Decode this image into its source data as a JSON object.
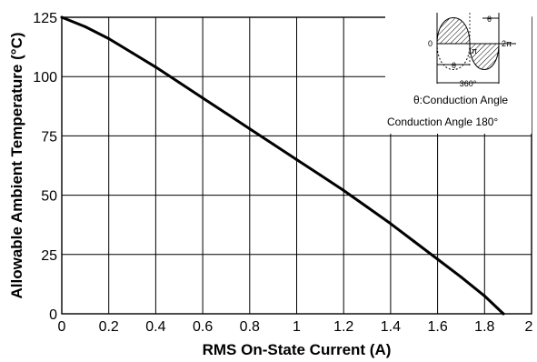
{
  "chart_data": {
    "type": "line",
    "xlabel": "RMS On-State Current (A)",
    "ylabel": "Allowable Ambient Temperature (°C)",
    "xlim": [
      0,
      2
    ],
    "ylim": [
      0,
      125
    ],
    "x_ticks": [
      "0",
      "0.2",
      "0.4",
      "0.6",
      "0.8",
      "1",
      "1.2",
      "1.4",
      "1.6",
      "1.8",
      "2"
    ],
    "y_ticks": [
      "0",
      "25",
      "50",
      "75",
      "100",
      "125"
    ],
    "x_tick_values": [
      0,
      0.2,
      0.4,
      0.6,
      0.8,
      1.0,
      1.2,
      1.4,
      1.6,
      1.8,
      2.0
    ],
    "y_tick_values": [
      0,
      25,
      50,
      75,
      100,
      125
    ],
    "grid": true,
    "series": [
      {
        "x": [
          0,
          0.1,
          0.2,
          0.3,
          0.4,
          0.5,
          0.6,
          0.7,
          0.8,
          0.9,
          1.0,
          1.1,
          1.2,
          1.3,
          1.4,
          1.5,
          1.6,
          1.7,
          1.8,
          1.88
        ],
        "y": [
          125,
          121,
          116,
          110,
          104,
          97.5,
          91,
          84.5,
          78,
          71.5,
          65,
          58.5,
          52,
          45,
          38,
          30.5,
          23,
          15.5,
          7.5,
          0
        ]
      }
    ],
    "annotations": {
      "inset_labels": {
        "zero": "0",
        "pi": "π",
        "two_pi": "2π",
        "theta": "θ",
        "degrees": "360°",
        "conduction_note": "θ:Conduction Angle"
      },
      "caption": "Conduction Angle 180°"
    }
  }
}
